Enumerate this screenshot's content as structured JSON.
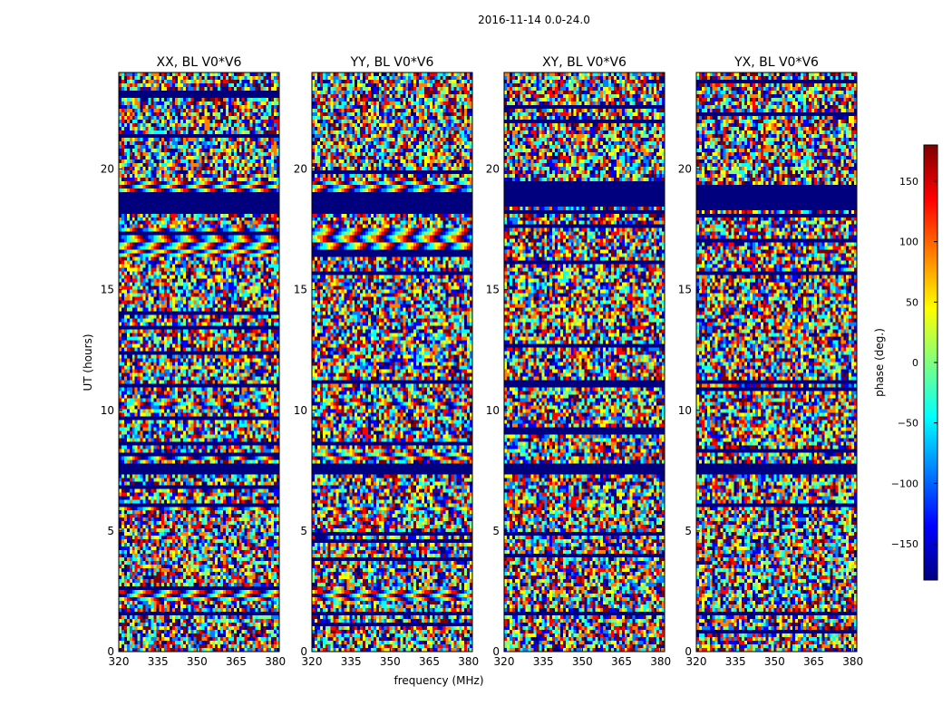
{
  "figure_title": "2016-11-14 0.0-24.0",
  "shared_xlabel": "frequency (MHz)",
  "shared_ylabel": "UT (hours)",
  "colorbar": {
    "label": "phase (deg.)",
    "range": [
      -180,
      180
    ],
    "ticks": [
      150,
      100,
      50,
      0,
      -50,
      -100,
      -150
    ],
    "tick_labels": [
      "150",
      "100",
      "50",
      "0",
      "−50",
      "−100",
      "−150"
    ],
    "colormap": "jet",
    "jet_colors": [
      "#00007f",
      "#0000ff",
      "#007fff",
      "#00ffff",
      "#7fff7f",
      "#ffff00",
      "#ff7f00",
      "#ff0000",
      "#7f0000"
    ]
  },
  "chart_data": [
    {
      "type": "heatmap",
      "title": "XX, BL V0*V6",
      "xlabel": "frequency (MHz)",
      "ylabel": "UT (hours)",
      "xlim": [
        320,
        381.5
      ],
      "ylim": [
        0,
        24
      ],
      "xticks": [
        320,
        335,
        350,
        365,
        380
      ],
      "xtick_labels": [
        "320",
        "335",
        "350",
        "365",
        "380"
      ],
      "yticks": [
        0,
        5,
        10,
        15,
        20
      ],
      "ytick_labels": [
        "0",
        "5",
        "10",
        "15",
        "20"
      ],
      "z": "phase (deg.)",
      "flagged_bands_hours": [
        [
          7.3,
          7.8
        ],
        [
          18.1,
          19.0
        ],
        [
          1.5,
          1.7
        ]
      ],
      "fringe_bands_hours": [
        [
          2.1,
          2.5
        ],
        [
          5.8,
          6.0
        ],
        [
          7.9,
          8.2
        ],
        [
          10.2,
          10.4
        ],
        [
          16.3,
          17.6
        ],
        [
          18.2,
          19.5
        ]
      ]
    },
    {
      "type": "heatmap",
      "title": "YY, BL V0*V6",
      "xlabel": "frequency (MHz)",
      "ylabel": "UT (hours)",
      "xlim": [
        320,
        381.5
      ],
      "ylim": [
        0,
        24
      ],
      "xticks": [
        320,
        335,
        350,
        365,
        380
      ],
      "xtick_labels": [
        "320",
        "335",
        "350",
        "365",
        "380"
      ],
      "yticks": [
        0,
        5,
        10,
        15,
        20
      ],
      "ytick_labels": [
        "0",
        "5",
        "10",
        "15",
        "20"
      ],
      "z": "phase (deg.)",
      "flagged_bands_hours": [
        [
          7.3,
          7.8
        ],
        [
          18.1,
          19.0
        ],
        [
          1.5,
          1.7
        ]
      ],
      "fringe_bands_hours": [
        [
          2.1,
          2.5
        ],
        [
          5.8,
          6.0
        ],
        [
          7.9,
          8.2
        ],
        [
          10.2,
          10.4
        ],
        [
          16.3,
          17.6
        ],
        [
          18.2,
          19.5
        ]
      ]
    },
    {
      "type": "heatmap",
      "title": "XY, BL V0*V6",
      "xlabel": "frequency (MHz)",
      "ylabel": "UT (hours)",
      "xlim": [
        320,
        381.5
      ],
      "ylim": [
        0,
        24
      ],
      "xticks": [
        320,
        335,
        350,
        365,
        380
      ],
      "xtick_labels": [
        "320",
        "335",
        "350",
        "365",
        "380"
      ],
      "yticks": [
        0,
        5,
        10,
        15,
        20
      ],
      "ytick_labels": [
        "0",
        "5",
        "10",
        "15",
        "20"
      ],
      "z": "phase (deg.)",
      "flagged_bands_hours": [
        [
          7.3,
          7.8
        ],
        [
          18.4,
          19.3
        ],
        [
          1.5,
          1.7
        ]
      ],
      "fringe_bands_hours": []
    },
    {
      "type": "heatmap",
      "title": "YX, BL V0*V6",
      "xlabel": "frequency (MHz)",
      "ylabel": "UT (hours)",
      "xlim": [
        320,
        381.5
      ],
      "ylim": [
        0,
        24
      ],
      "xticks": [
        320,
        335,
        350,
        365,
        380
      ],
      "xtick_labels": [
        "320",
        "335",
        "350",
        "365",
        "380"
      ],
      "yticks": [
        0,
        5,
        10,
        15,
        20
      ],
      "ytick_labels": [
        "0",
        "5",
        "10",
        "15",
        "20"
      ],
      "z": "phase (deg.)",
      "flagged_bands_hours": [
        [
          7.3,
          7.8
        ],
        [
          18.4,
          19.3
        ],
        [
          1.5,
          1.7
        ]
      ],
      "fringe_bands_hours": []
    }
  ]
}
